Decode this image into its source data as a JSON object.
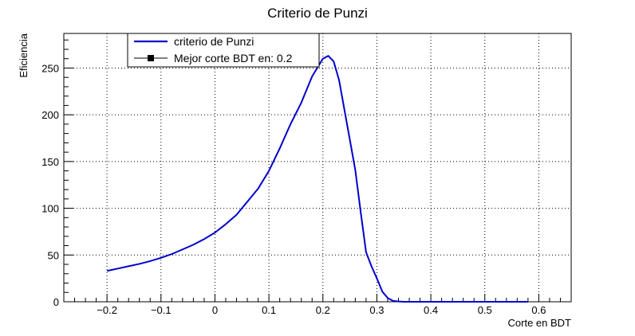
{
  "chart_data": {
    "type": "line",
    "title": "Criterio de Punzi",
    "xlabel": "Corte en BDT",
    "ylabel": "Eficiencia",
    "xlim": [
      -0.28,
      0.66
    ],
    "ylim": [
      0,
      287
    ],
    "grid": true,
    "legend_position": "top-left",
    "x_ticks": [
      -0.2,
      -0.1,
      0,
      0.1,
      0.2,
      0.3,
      0.4,
      0.5,
      0.6
    ],
    "x_tick_labels": [
      "−0.2",
      "−0.1",
      "0",
      "0.1",
      "0.2",
      "0.3",
      "0.4",
      "0.5",
      "0.6"
    ],
    "y_ticks": [
      0,
      50,
      100,
      150,
      200,
      250
    ],
    "y_tick_labels": [
      "0",
      "50",
      "100",
      "150",
      "200",
      "250"
    ],
    "series": [
      {
        "name": "criterio de Punzi",
        "color": "#0000cc",
        "x": [
          -0.2,
          -0.18,
          -0.16,
          -0.14,
          -0.12,
          -0.1,
          -0.08,
          -0.06,
          -0.04,
          -0.02,
          0.0,
          0.02,
          0.04,
          0.06,
          0.08,
          0.1,
          0.12,
          0.14,
          0.16,
          0.18,
          0.2,
          0.21,
          0.22,
          0.23,
          0.24,
          0.25,
          0.26,
          0.27,
          0.28,
          0.29,
          0.3,
          0.31,
          0.32,
          0.33,
          0.34,
          0.35,
          0.36,
          0.38,
          0.4,
          0.45,
          0.5,
          0.55,
          0.58
        ],
        "y": [
          33,
          35.5,
          38,
          40.5,
          43.5,
          47,
          51,
          56,
          61,
          67,
          74,
          83,
          93,
          107,
          121,
          140,
          164,
          190,
          213,
          241,
          260,
          263,
          257,
          237,
          205,
          173,
          141,
          96,
          53,
          38,
          25,
          11,
          4,
          1,
          0.3,
          0,
          0,
          0,
          0,
          0,
          0,
          0,
          0
        ]
      }
    ],
    "annotations": [
      {
        "label": "Mejor corte BDT en: 0.2",
        "marker": "square",
        "color": "#000000"
      }
    ]
  }
}
